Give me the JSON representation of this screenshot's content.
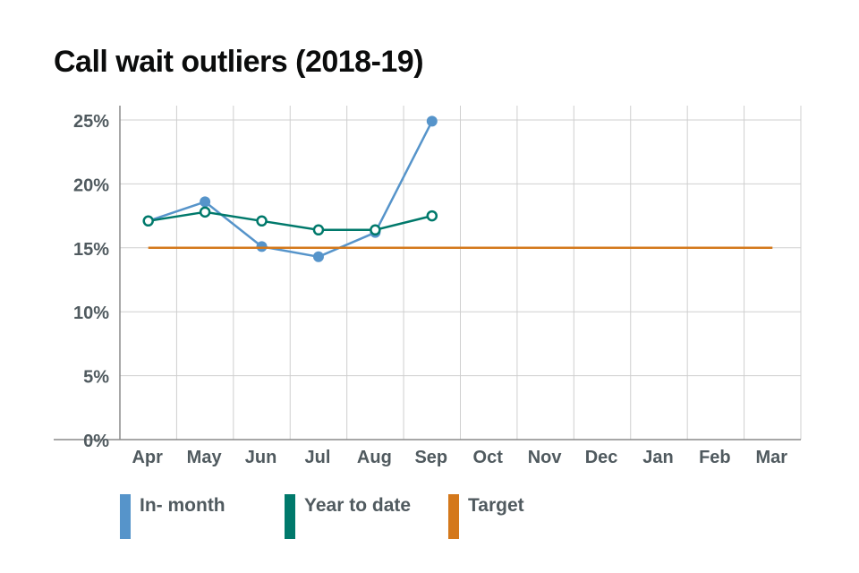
{
  "chart_data": {
    "type": "line",
    "title": "Call wait outliers (2018-19)",
    "categories": [
      "Apr",
      "May",
      "Jun",
      "Jul",
      "Aug",
      "Sep",
      "Oct",
      "Nov",
      "Dec",
      "Jan",
      "Feb",
      "Mar"
    ],
    "y_tick_labels": [
      "0%",
      "5%",
      "10%",
      "15%",
      "20%",
      "25%"
    ],
    "y_ticks": [
      0,
      5,
      10,
      15,
      20,
      25
    ],
    "ylim": [
      0,
      25
    ],
    "grid": true,
    "legend_position": "bottom",
    "series": [
      {
        "name": "In- month",
        "key": "in-month",
        "color": "#5694ca",
        "marker": "filled",
        "values": [
          17.1,
          18.6,
          15.1,
          14.3,
          16.2,
          24.9,
          null,
          null,
          null,
          null,
          null,
          null
        ]
      },
      {
        "name": "Year to date",
        "key": "year-to-date",
        "color": "#00796b",
        "marker": "hollow",
        "values": [
          17.1,
          17.8,
          17.1,
          16.4,
          16.4,
          17.5,
          null,
          null,
          null,
          null,
          null,
          null
        ]
      },
      {
        "name": "Target",
        "key": "target",
        "color": "#d4781b",
        "marker": "none",
        "values": [
          15,
          15,
          15,
          15,
          15,
          15,
          15,
          15,
          15,
          15,
          15,
          15
        ]
      }
    ]
  }
}
